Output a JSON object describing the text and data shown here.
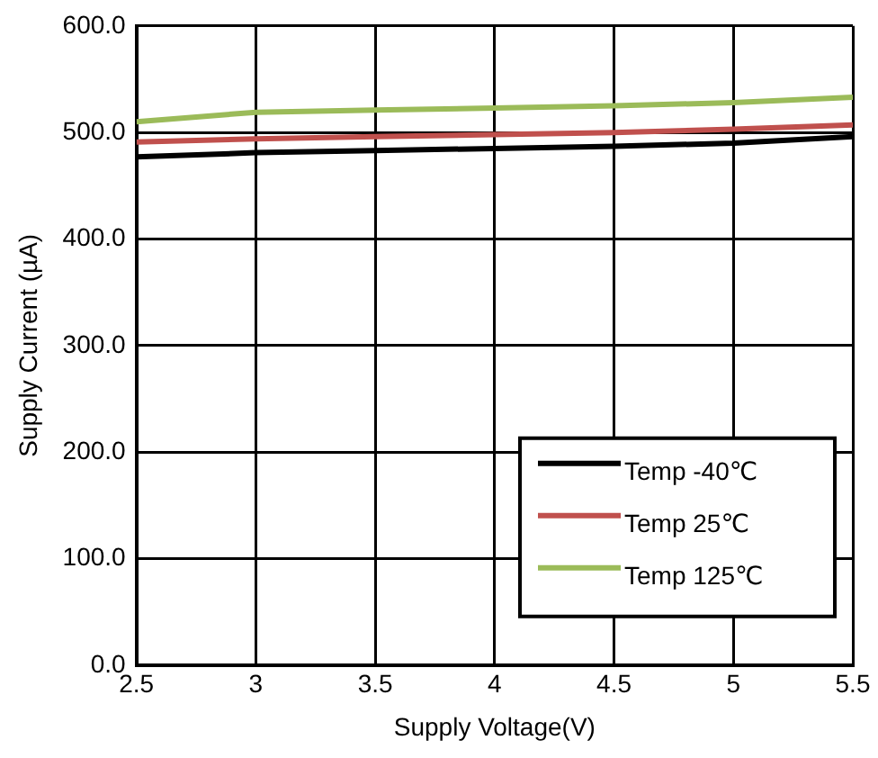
{
  "chart_data": {
    "type": "line",
    "xlabel": "Supply Voltage(V)",
    "ylabel": "Supply Current (µA)",
    "x": [
      2.5,
      3,
      3.5,
      4,
      4.5,
      5,
      5.5
    ],
    "series": [
      {
        "name": "Temp -40℃",
        "color": "#000000",
        "values": [
          477,
          481,
          483,
          485,
          487,
          490,
          496
        ]
      },
      {
        "name": "Temp 25℃",
        "color": "#c0504d",
        "values": [
          491,
          494,
          496,
          498,
          500,
          503,
          507
        ]
      },
      {
        "name": "Temp 125℃",
        "color": "#9bbb59",
        "values": [
          510,
          519,
          521,
          523,
          525,
          528,
          533
        ]
      }
    ],
    "xlim": [
      2.5,
      5.5
    ],
    "xticks": [
      2.5,
      3,
      3.5,
      4,
      4.5,
      5,
      5.5
    ],
    "ylim": [
      0,
      600
    ],
    "yticks": [
      {
        "value": 0,
        "label": "0.0"
      },
      {
        "value": 100,
        "label": "100.0"
      },
      {
        "value": 200,
        "label": "200.0"
      },
      {
        "value": 300,
        "label": "300.0"
      },
      {
        "value": 400,
        "label": "400.0"
      },
      {
        "value": 500,
        "label": "500.0"
      },
      {
        "value": 600,
        "label": "600.0"
      }
    ],
    "grid": true,
    "legend": "bottom right",
    "marker": "none",
    "line_style": "solid"
  }
}
